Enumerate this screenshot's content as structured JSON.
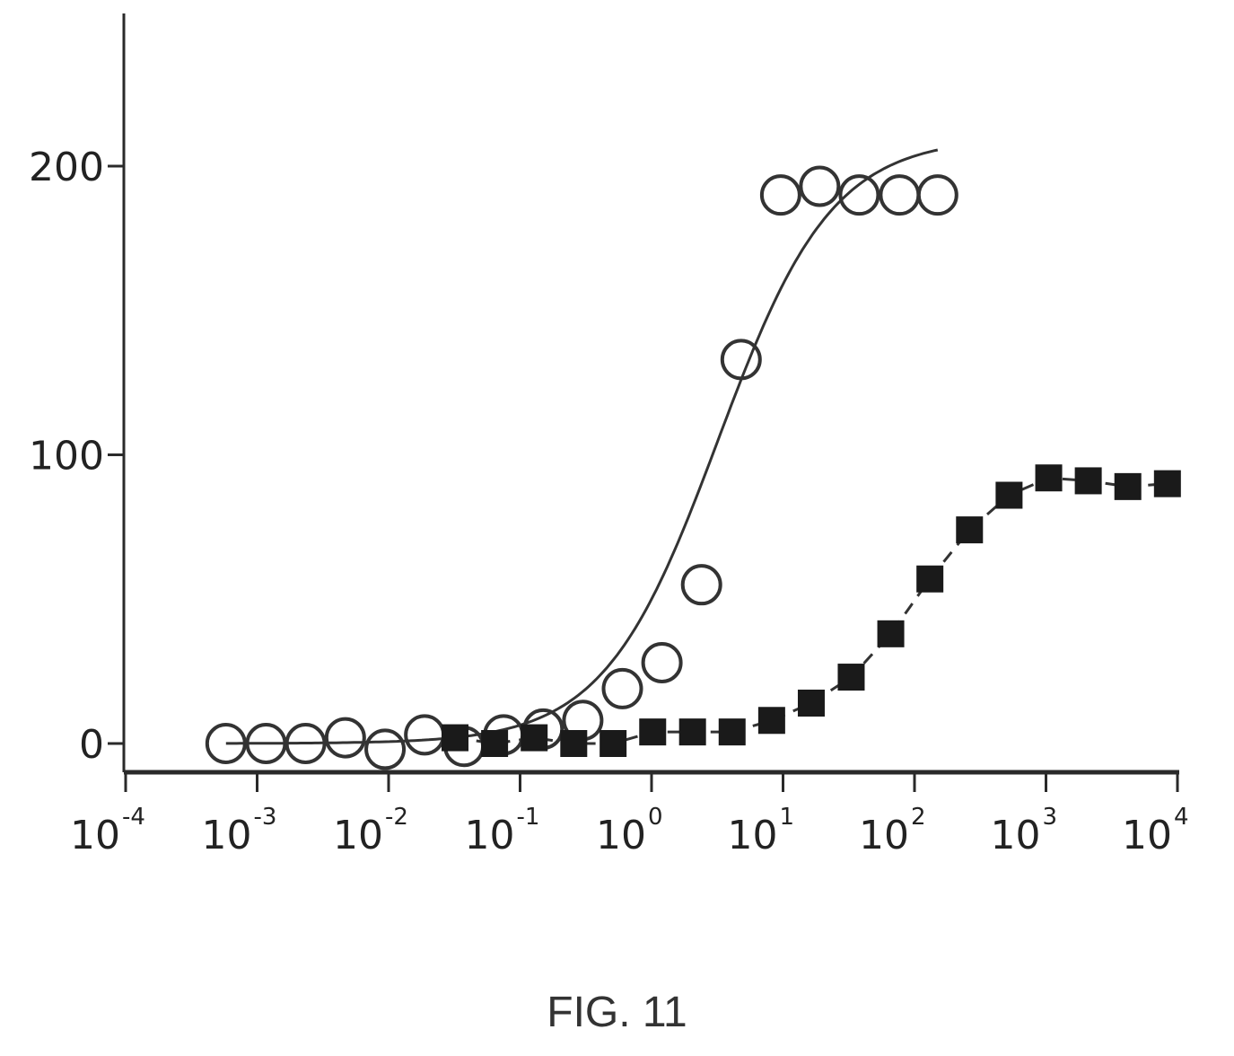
{
  "figure": {
    "caption": "FIG. 11"
  },
  "chart_data": {
    "type": "scatter",
    "title": "",
    "xlabel": "",
    "ylabel": "",
    "x_scale": "log",
    "xlim": [
      0.0001,
      10000
    ],
    "ylim": [
      -10,
      250
    ],
    "x_ticks": [
      {
        "base": "10",
        "exp": "-4",
        "value": 0.0001
      },
      {
        "base": "10",
        "exp": "-3",
        "value": 0.001
      },
      {
        "base": "10",
        "exp": "-2",
        "value": 0.01
      },
      {
        "base": "10",
        "exp": "-1",
        "value": 0.1
      },
      {
        "base": "10",
        "exp": "0",
        "value": 1
      },
      {
        "base": "10",
        "exp": "1",
        "value": 10
      },
      {
        "base": "10",
        "exp": "2",
        "value": 100
      },
      {
        "base": "10",
        "exp": "3",
        "value": 1000
      },
      {
        "base": "10",
        "exp": "4",
        "value": 10000
      }
    ],
    "y_ticks": [
      {
        "label": "0",
        "value": 0
      },
      {
        "label": "100",
        "value": 100
      },
      {
        "label": "200",
        "value": 200
      }
    ],
    "grid": false,
    "legend": "none",
    "series": [
      {
        "marker": "open-circle",
        "color": "#333333",
        "points": [
          {
            "x": 0.00058,
            "y": 0
          },
          {
            "x": 0.00117,
            "y": 0
          },
          {
            "x": 0.00234,
            "y": 0
          },
          {
            "x": 0.00469,
            "y": 2
          },
          {
            "x": 0.0094,
            "y": -2
          },
          {
            "x": 0.0188,
            "y": 3
          },
          {
            "x": 0.0375,
            "y": -1
          },
          {
            "x": 0.075,
            "y": 3
          },
          {
            "x": 0.15,
            "y": 5
          },
          {
            "x": 0.3,
            "y": 8
          },
          {
            "x": 0.6,
            "y": 19
          },
          {
            "x": 1.2,
            "y": 28
          },
          {
            "x": 2.4,
            "y": 55
          },
          {
            "x": 4.8,
            "y": 133
          },
          {
            "x": 9.6,
            "y": 190
          },
          {
            "x": 19,
            "y": 193
          },
          {
            "x": 38,
            "y": 190
          },
          {
            "x": 77,
            "y": 190
          },
          {
            "x": 150,
            "y": 190
          }
        ],
        "fit": {
          "type": "sigmoid",
          "bottom": 0,
          "top": 210,
          "ec50": 3.2,
          "hill": 1.0,
          "x_start": 0.00058,
          "x_end": 150
        }
      },
      {
        "marker": "filled-square",
        "color": "#1a1a1a",
        "points": [
          {
            "x": 0.032,
            "y": 2
          },
          {
            "x": 0.064,
            "y": 0
          },
          {
            "x": 0.128,
            "y": 2
          },
          {
            "x": 0.256,
            "y": 0
          },
          {
            "x": 0.51,
            "y": 0
          },
          {
            "x": 1.02,
            "y": 4
          },
          {
            "x": 2.05,
            "y": 4
          },
          {
            "x": 4.1,
            "y": 4
          },
          {
            "x": 8.2,
            "y": 8
          },
          {
            "x": 16.4,
            "y": 14
          },
          {
            "x": 33,
            "y": 23
          },
          {
            "x": 66,
            "y": 38
          },
          {
            "x": 131,
            "y": 57
          },
          {
            "x": 262,
            "y": 74
          },
          {
            "x": 524,
            "y": 86
          },
          {
            "x": 1049,
            "y": 92
          },
          {
            "x": 2097,
            "y": 91
          },
          {
            "x": 4194,
            "y": 89
          },
          {
            "x": 8389,
            "y": 90
          }
        ]
      }
    ]
  }
}
